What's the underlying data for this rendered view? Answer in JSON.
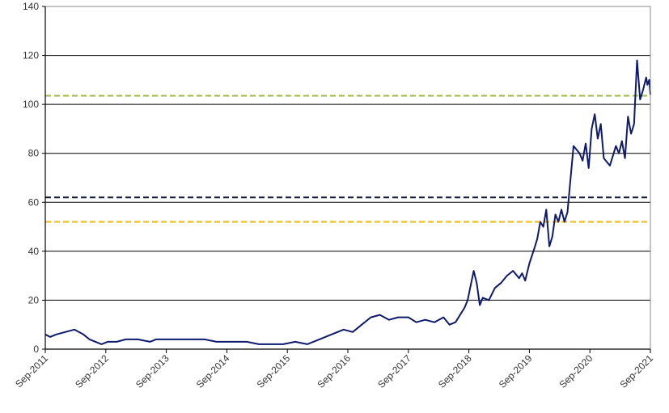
{
  "chart_data": {
    "type": "line",
    "title": "",
    "xlabel": "",
    "ylabel": "",
    "ylim": [
      0,
      140
    ],
    "yticks": [
      0,
      20,
      40,
      60,
      80,
      100,
      120,
      140
    ],
    "xlim": [
      2011.67,
      2021.67
    ],
    "xticks": [
      {
        "x": 2011.67,
        "label": "Sep-2011"
      },
      {
        "x": 2012.67,
        "label": "Sep-2012"
      },
      {
        "x": 2013.67,
        "label": "Sep-2013"
      },
      {
        "x": 2014.67,
        "label": "Sep-2014"
      },
      {
        "x": 2015.67,
        "label": "Sep-2015"
      },
      {
        "x": 2016.67,
        "label": "Sep-2016"
      },
      {
        "x": 2017.67,
        "label": "Sep-2017"
      },
      {
        "x": 2018.67,
        "label": "Sep-2018"
      },
      {
        "x": 2019.67,
        "label": "Sep-2019"
      },
      {
        "x": 2020.67,
        "label": "Sep-2020"
      },
      {
        "x": 2021.67,
        "label": "Sep-2021"
      }
    ],
    "grid": "horizontal",
    "series": [
      {
        "color": "#0d1a6e",
        "x": [
          2011.67,
          2011.75,
          2011.85,
          2012.0,
          2012.15,
          2012.3,
          2012.4,
          2012.5,
          2012.6,
          2012.7,
          2012.85,
          2013.0,
          2013.2,
          2013.4,
          2013.5,
          2013.7,
          2013.9,
          2014.1,
          2014.3,
          2014.5,
          2014.67,
          2014.8,
          2015.0,
          2015.2,
          2015.4,
          2015.6,
          2015.8,
          2016.0,
          2016.2,
          2016.4,
          2016.6,
          2016.75,
          2016.9,
          2017.05,
          2017.2,
          2017.35,
          2017.5,
          2017.67,
          2017.8,
          2017.95,
          2018.1,
          2018.25,
          2018.35,
          2018.45,
          2018.55,
          2018.6,
          2018.65,
          2018.7,
          2018.75,
          2018.8,
          2018.85,
          2018.9,
          2019.0,
          2019.1,
          2019.2,
          2019.3,
          2019.4,
          2019.5,
          2019.55,
          2019.6,
          2019.67,
          2019.75,
          2019.8,
          2019.85,
          2019.9,
          2019.95,
          2020.0,
          2020.05,
          2020.1,
          2020.15,
          2020.2,
          2020.25,
          2020.3,
          2020.4,
          2020.5,
          2020.55,
          2020.6,
          2020.65,
          2020.7,
          2020.75,
          2020.8,
          2020.85,
          2020.9,
          2021.0,
          2021.1,
          2021.15,
          2021.2,
          2021.25,
          2021.3,
          2021.35,
          2021.4,
          2021.45,
          2021.5,
          2021.55,
          2021.6,
          2021.62,
          2021.65,
          2021.67
        ],
        "values": [
          6,
          5,
          6,
          7,
          8,
          6,
          4,
          3,
          2,
          3,
          3,
          4,
          4,
          3,
          4,
          4,
          4,
          4,
          4,
          3,
          3,
          3,
          3,
          2,
          2,
          2,
          3,
          2,
          4,
          6,
          8,
          7,
          10,
          13,
          14,
          12,
          13,
          13,
          11,
          12,
          11,
          13,
          10,
          11,
          15,
          17,
          20,
          26,
          32,
          27,
          18,
          21,
          20,
          25,
          27,
          30,
          32,
          29,
          31,
          28,
          35,
          41,
          45,
          52,
          50,
          57,
          42,
          46,
          55,
          52,
          57,
          52,
          56,
          83,
          80,
          77,
          84,
          74,
          90,
          96,
          86,
          92,
          78,
          75,
          83,
          80,
          85,
          78,
          95,
          88,
          92,
          118,
          102,
          106,
          111,
          108,
          110,
          104
        ]
      }
    ],
    "reference_lines": [
      {
        "y": 103.5,
        "color": "#9bbb3c",
        "style": "dashed"
      },
      {
        "y": 62,
        "color": "#0d1a3a",
        "style": "dashed"
      },
      {
        "y": 52,
        "color": "#f2b800",
        "style": "dashed"
      }
    ]
  }
}
